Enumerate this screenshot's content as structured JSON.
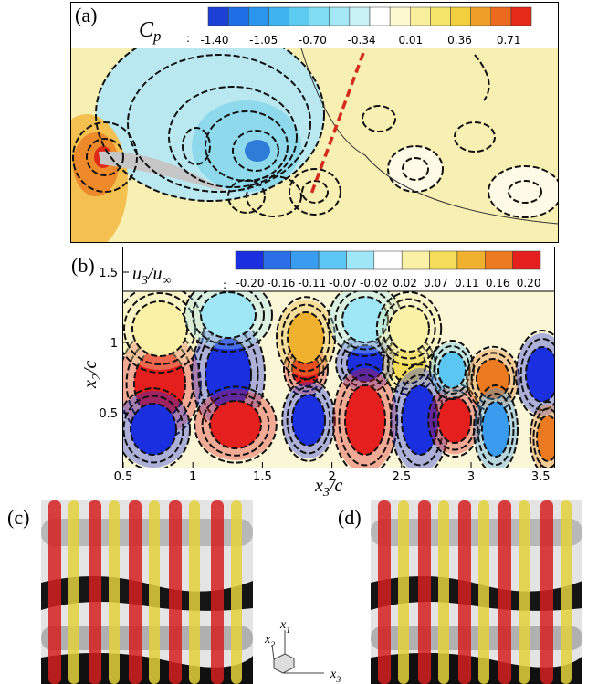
{
  "panels": [
    {
      "label": "(a)",
      "colorbar": {
        "symbol": [
          {
            "text": "C"
          },
          {
            "sub": "p"
          }
        ],
        "separator": ":",
        "ticks": [
          "-1.40",
          "-1.05",
          "-0.70",
          "-0.34",
          "0.01",
          "0.36",
          "0.71"
        ]
      }
    },
    {
      "label": "(b)",
      "colorbar": {
        "symbol": [
          {
            "text": "u"
          },
          {
            "sub": "3"
          },
          {
            "text": "/u"
          },
          {
            "sub": "∞"
          }
        ],
        "separator": ":",
        "ticks": [
          "-0.20",
          "-0.16",
          "-0.11",
          "-0.07",
          "-0.02",
          "0.02",
          "0.07",
          "0.11",
          "0.16",
          "0.20"
        ]
      },
      "x_axis": {
        "label": [
          {
            "text": "x"
          },
          {
            "sub": "3"
          },
          {
            "text": "/c"
          }
        ],
        "ticks": [
          "0.5",
          "1",
          "1.5",
          "2",
          "2.5",
          "3",
          "3.5"
        ]
      },
      "y_axis": {
        "label": [
          {
            "text": "x"
          },
          {
            "sub": "2"
          },
          {
            "text": "/c"
          }
        ],
        "ticks": [
          "0.5",
          "1",
          "1.5"
        ]
      }
    },
    {
      "label": "(c)"
    },
    {
      "label": "(d)"
    }
  ],
  "triad": [
    [
      {
        "text": "x"
      },
      {
        "sub": "1"
      }
    ],
    [
      {
        "text": "x"
      },
      {
        "sub": "2"
      }
    ],
    [
      {
        "text": "x"
      },
      {
        "sub": "3"
      }
    ]
  ]
}
